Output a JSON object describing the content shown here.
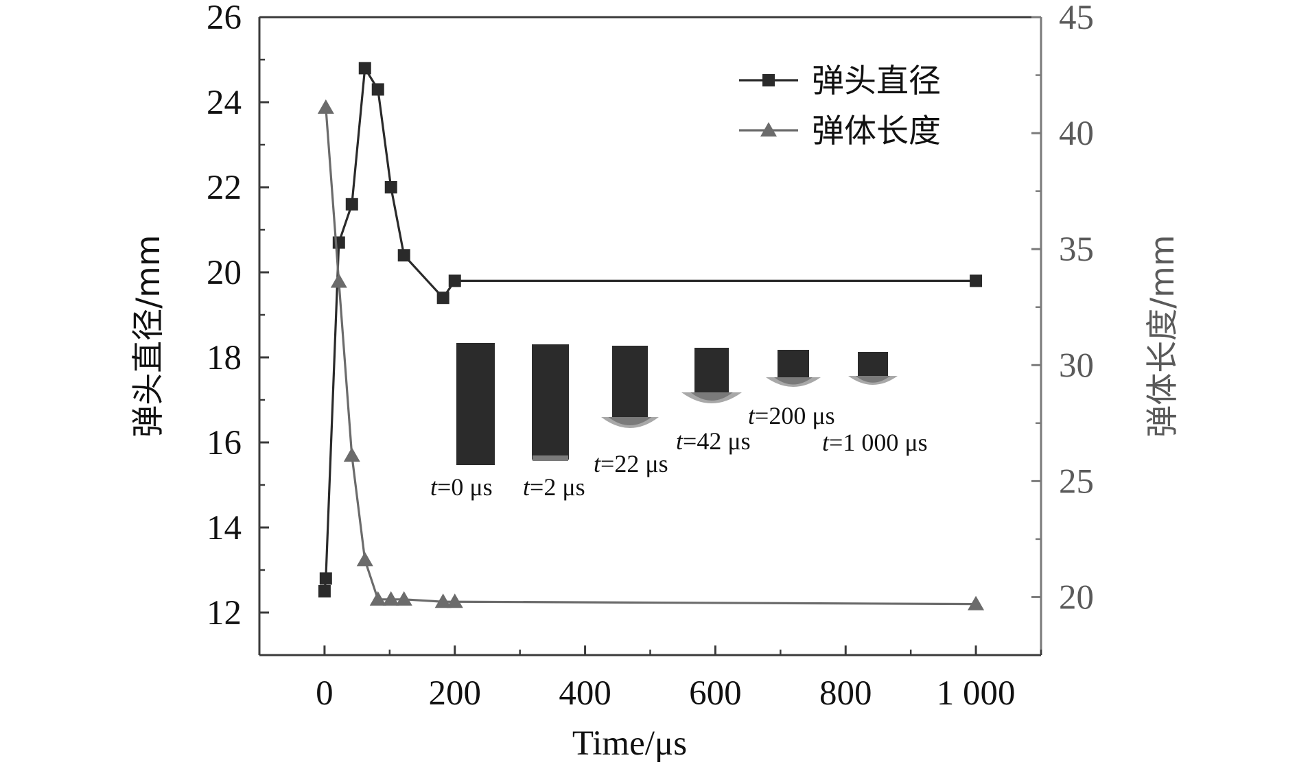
{
  "chart_data": {
    "type": "line",
    "title": "",
    "xlabel": "Time/μs",
    "ylabel_left": "弹头直径/mm",
    "ylabel_right": "弹体长度/mm",
    "xlim": [
      -100,
      1100
    ],
    "ylim_left": [
      11,
      26
    ],
    "ylim_right": [
      17.5,
      45
    ],
    "x_ticks": [
      {
        "value": 0,
        "label": "0"
      },
      {
        "value": 200,
        "label": "200"
      },
      {
        "value": 400,
        "label": "400"
      },
      {
        "value": 600,
        "label": "600"
      },
      {
        "value": 800,
        "label": "800"
      },
      {
        "value": 1000,
        "label": "1 000"
      }
    ],
    "y_left_ticks": [
      {
        "value": 12,
        "label": "12"
      },
      {
        "value": 14,
        "label": "14"
      },
      {
        "value": 16,
        "label": "16"
      },
      {
        "value": 18,
        "label": "18"
      },
      {
        "value": 20,
        "label": "20"
      },
      {
        "value": 22,
        "label": "22"
      },
      {
        "value": 24,
        "label": "24"
      },
      {
        "value": 26,
        "label": "26"
      }
    ],
    "y_right_ticks": [
      {
        "value": 20,
        "label": "20"
      },
      {
        "value": 25,
        "label": "25"
      },
      {
        "value": 30,
        "label": "30"
      },
      {
        "value": 35,
        "label": "35"
      },
      {
        "value": 40,
        "label": "40"
      },
      {
        "value": 45,
        "label": "45"
      }
    ],
    "grid": false,
    "legend_position": "top-right",
    "series": [
      {
        "name": "弹头直径",
        "axis": "left",
        "marker": "square",
        "color": "#2a2a2a",
        "points": [
          {
            "x": 0,
            "y": 12.5
          },
          {
            "x": 2,
            "y": 12.8
          },
          {
            "x": 22,
            "y": 20.7
          },
          {
            "x": 42,
            "y": 21.6
          },
          {
            "x": 62,
            "y": 24.8
          },
          {
            "x": 82,
            "y": 24.3
          },
          {
            "x": 102,
            "y": 22.0
          },
          {
            "x": 122,
            "y": 20.4
          },
          {
            "x": 182,
            "y": 19.4
          },
          {
            "x": 200,
            "y": 19.8
          },
          {
            "x": 1000,
            "y": 19.8
          }
        ]
      },
      {
        "name": "弹体长度",
        "axis": "right",
        "marker": "triangle",
        "color": "#6b6b6b",
        "points": [
          {
            "x": 2,
            "y": 41.1
          },
          {
            "x": 22,
            "y": 33.6
          },
          {
            "x": 42,
            "y": 26.1
          },
          {
            "x": 62,
            "y": 21.6
          },
          {
            "x": 82,
            "y": 19.9
          },
          {
            "x": 102,
            "y": 19.9
          },
          {
            "x": 122,
            "y": 19.9
          },
          {
            "x": 182,
            "y": 19.8
          },
          {
            "x": 200,
            "y": 19.8
          },
          {
            "x": 1000,
            "y": 19.7
          }
        ]
      }
    ],
    "inset_labels": [
      {
        "t": "t",
        "rest": "=0 μs"
      },
      {
        "t": "t",
        "rest": "=2 μs"
      },
      {
        "t": "t",
        "rest": "=22 μs"
      },
      {
        "t": "t",
        "rest": "=42 μs"
      },
      {
        "t": "t",
        "rest": "=200 μs"
      },
      {
        "t": "t",
        "rest": "=1 000 μs"
      }
    ],
    "colors": {
      "axis": "#3a3a3a",
      "right_axis": "#7a7a7a",
      "right_text": "#5a5a5a",
      "projectile_dark": "#2b2b2b",
      "projectile_mid": "#7a7a7a",
      "projectile_light": "#a8a8a8"
    }
  }
}
